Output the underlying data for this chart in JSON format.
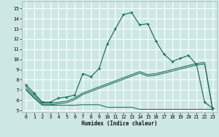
{
  "bg_color": "#cde8e4",
  "grid_color": "#ffffff",
  "line_color": "#1a6b5a",
  "xlim": [
    -0.5,
    23.5
  ],
  "ylim": [
    4.8,
    15.7
  ],
  "xticks": [
    0,
    1,
    2,
    3,
    4,
    5,
    6,
    7,
    8,
    9,
    10,
    11,
    12,
    13,
    14,
    15,
    16,
    17,
    18,
    19,
    20,
    21,
    22,
    23
  ],
  "yticks": [
    5,
    6,
    7,
    8,
    9,
    10,
    11,
    12,
    13,
    14,
    15
  ],
  "xlabel": "Humidex (Indice chaleur)",
  "main_x": [
    0,
    1,
    2,
    3,
    4,
    5,
    6,
    7,
    8,
    9,
    10,
    11,
    12,
    13,
    14,
    15,
    16,
    17,
    18,
    19,
    20,
    21,
    22,
    23
  ],
  "main_y": [
    7.5,
    6.7,
    5.8,
    5.8,
    6.2,
    6.3,
    6.5,
    8.6,
    8.3,
    9.1,
    11.5,
    13.0,
    14.4,
    14.6,
    13.4,
    13.5,
    11.8,
    10.5,
    9.8,
    10.1,
    10.4,
    9.5,
    5.8,
    5.2
  ],
  "lin1_x": [
    0,
    1,
    2,
    3,
    4,
    5,
    6,
    7,
    8,
    9,
    10,
    11,
    12,
    13,
    14,
    15,
    16,
    17,
    18,
    19,
    20,
    21,
    22,
    23
  ],
  "lin1_y": [
    7.3,
    6.5,
    5.7,
    5.7,
    5.8,
    5.9,
    6.2,
    6.7,
    7.0,
    7.3,
    7.6,
    7.9,
    8.2,
    8.5,
    8.8,
    8.5,
    8.6,
    8.8,
    9.0,
    9.2,
    9.4,
    9.6,
    9.7,
    5.1
  ],
  "lin2_x": [
    0,
    1,
    2,
    3,
    4,
    5,
    6,
    7,
    8,
    9,
    10,
    11,
    12,
    13,
    14,
    15,
    16,
    17,
    18,
    19,
    20,
    21,
    22,
    23
  ],
  "lin2_y": [
    7.1,
    6.3,
    5.55,
    5.55,
    5.65,
    5.75,
    6.05,
    6.55,
    6.85,
    7.15,
    7.45,
    7.75,
    8.05,
    8.35,
    8.65,
    8.35,
    8.45,
    8.65,
    8.85,
    9.05,
    9.25,
    9.45,
    9.55,
    4.95
  ],
  "flat_x": [
    0,
    1,
    2,
    3,
    4,
    5,
    6,
    7,
    8,
    9,
    10,
    11,
    12,
    13,
    14,
    15,
    16,
    17,
    18,
    19,
    20,
    21,
    22,
    23
  ],
  "flat_y": [
    7.0,
    6.2,
    5.5,
    5.5,
    5.5,
    5.5,
    5.5,
    5.55,
    5.55,
    5.55,
    5.3,
    5.3,
    5.3,
    5.3,
    5.1,
    5.1,
    5.1,
    5.1,
    5.1,
    5.1,
    5.1,
    5.1,
    5.1,
    5.1
  ]
}
